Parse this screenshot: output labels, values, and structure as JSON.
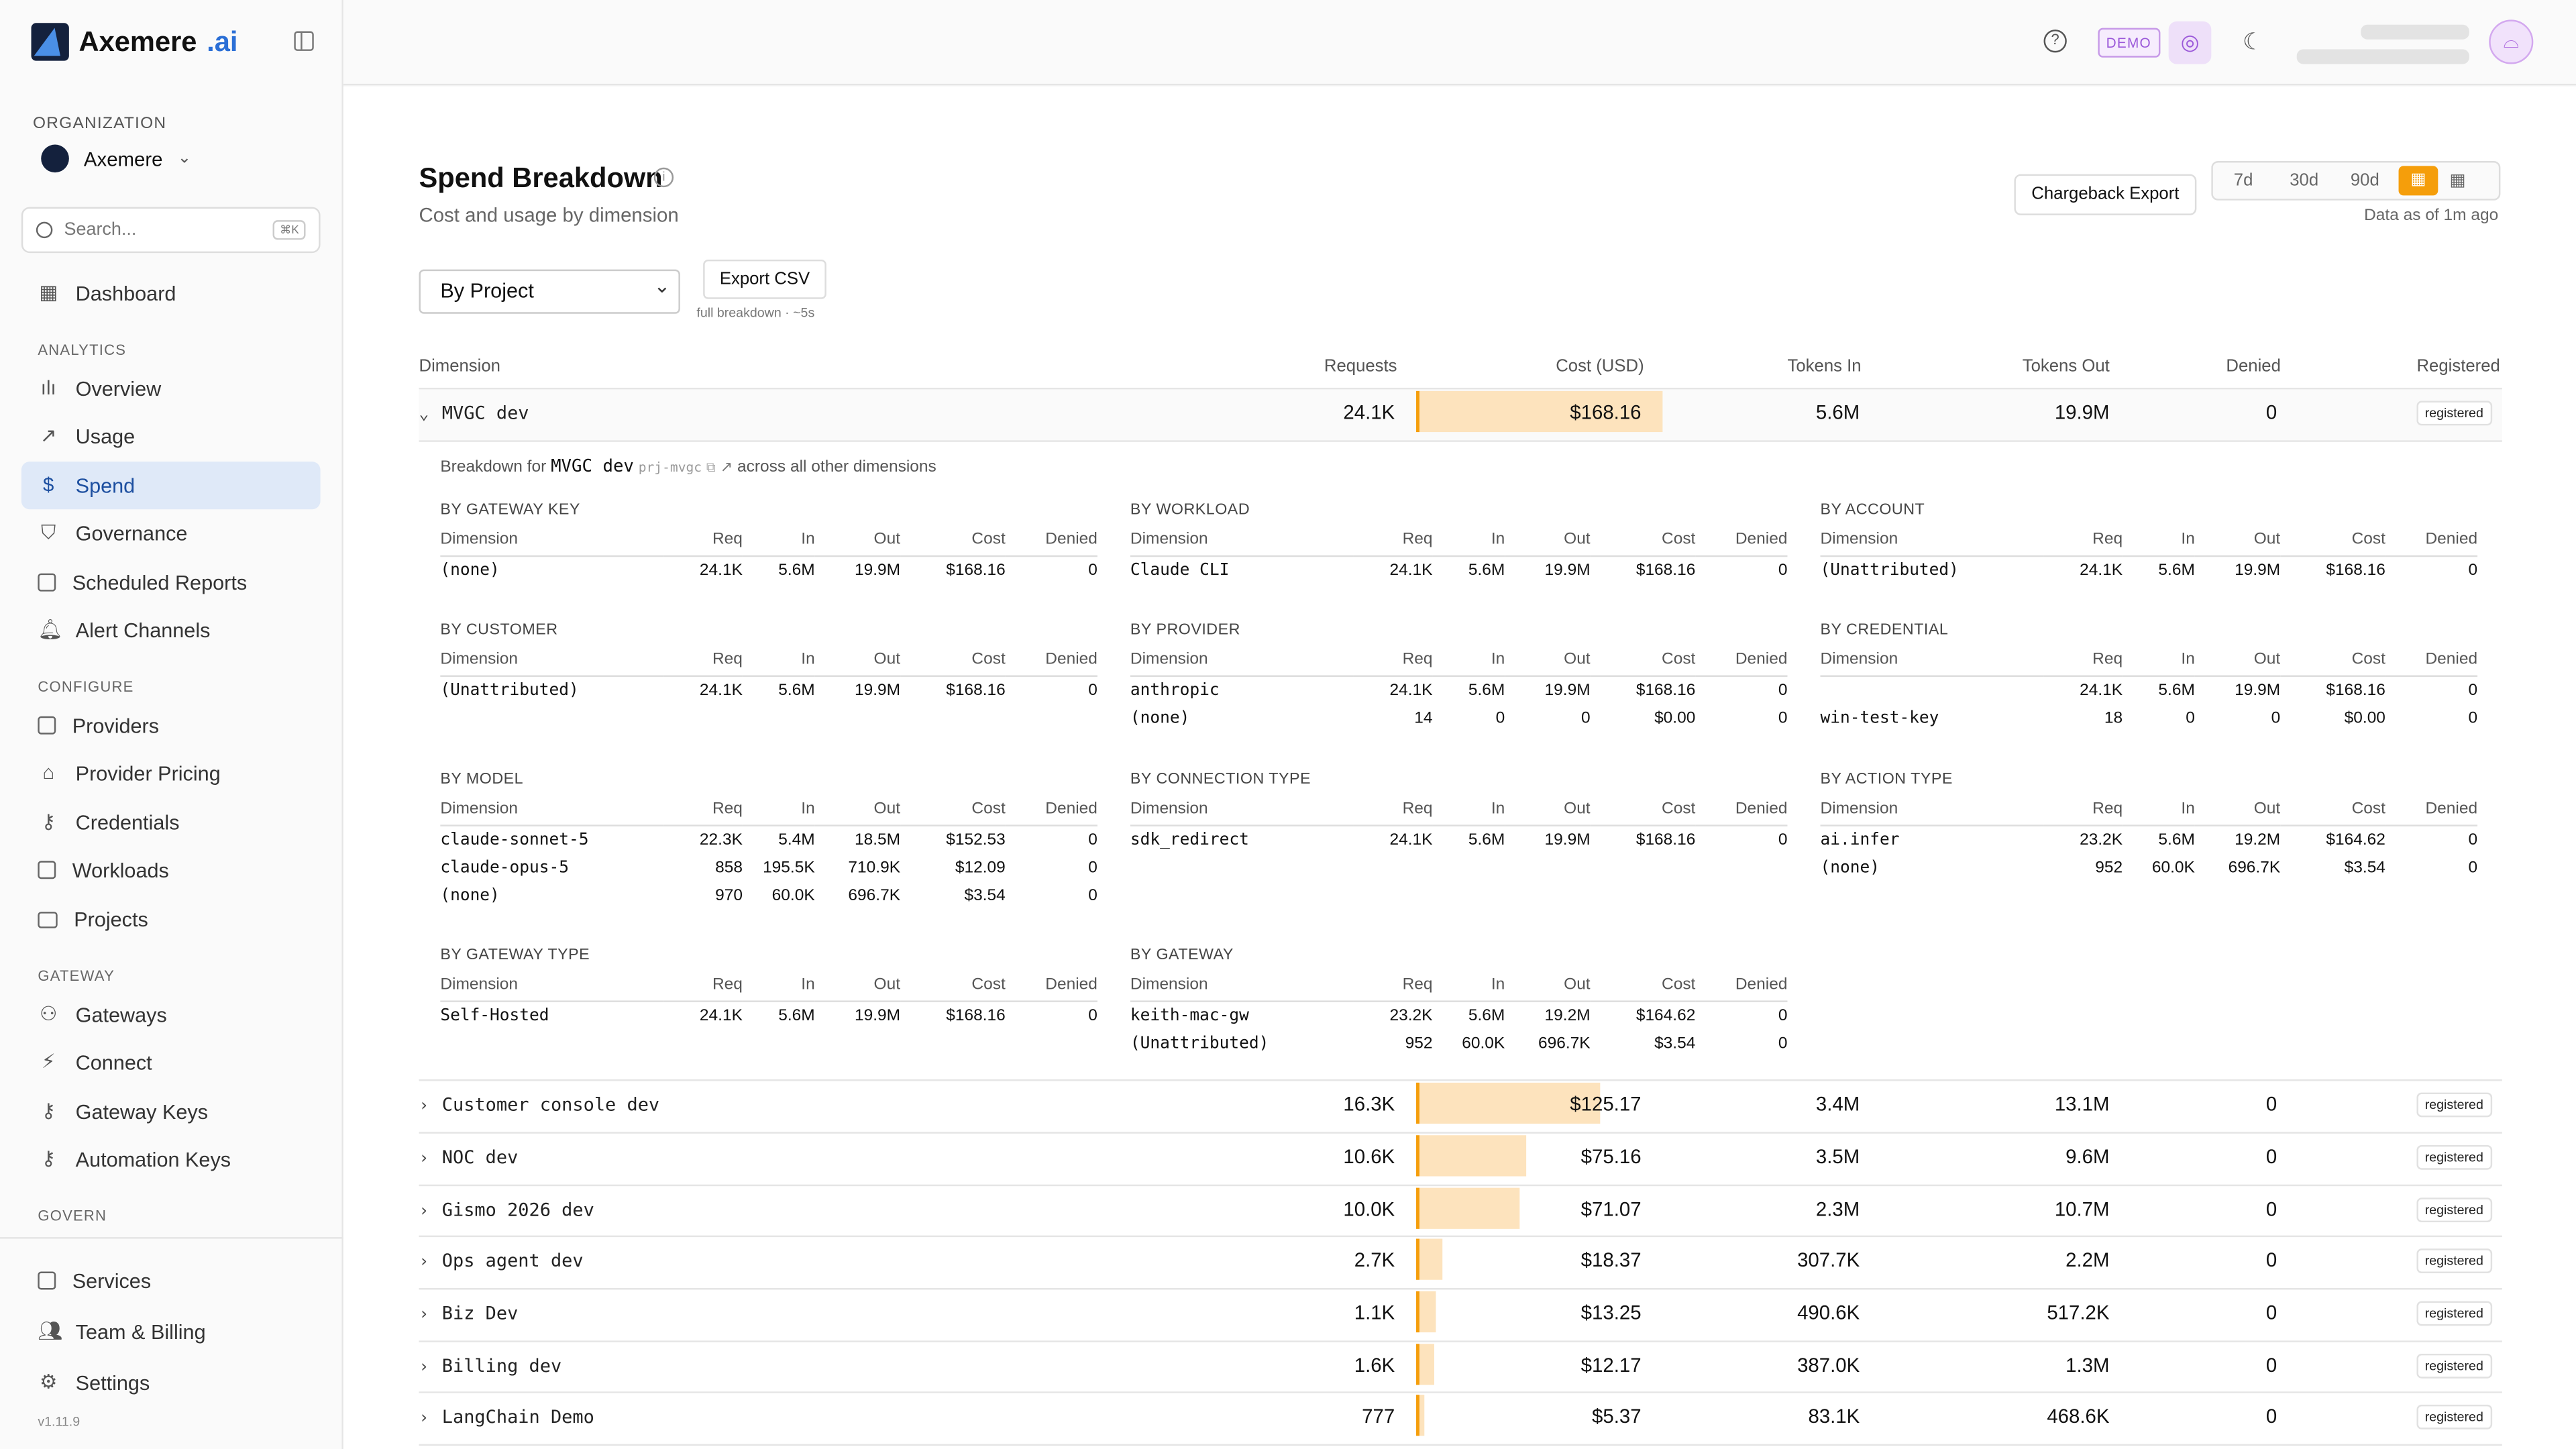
{
  "brand": {
    "name": "Axemere",
    "suffix": ".ai"
  },
  "org": {
    "label": "ORGANIZATION",
    "name": "Axemere"
  },
  "search": {
    "placeholder": "Search...",
    "shortcut": "⌘K"
  },
  "nav": {
    "dashboard": "Dashboard",
    "analytics_label": "ANALYTICS",
    "analytics": [
      "Overview",
      "Usage",
      "Spend",
      "Governance",
      "Scheduled Reports",
      "Alert Channels"
    ],
    "configure_label": "CONFIGURE",
    "configure": [
      "Providers",
      "Provider Pricing",
      "Credentials",
      "Workloads",
      "Projects"
    ],
    "gateway_label": "GATEWAY",
    "gateway": [
      "Gateways",
      "Connect",
      "Gateway Keys",
      "Automation Keys"
    ],
    "govern_label": "GOVERN",
    "bottom": [
      "Services",
      "Team & Billing",
      "Settings"
    ],
    "version": "v1.11.9"
  },
  "topbar": {
    "demo": "DEMO"
  },
  "page": {
    "title": "Spend Breakdown",
    "subtitle": "Cost and usage by dimension",
    "chargeback": "Chargeback Export",
    "ranges": [
      "7d",
      "30d",
      "90d"
    ],
    "as_of": "Data as of 1m ago",
    "group_by": "By Project",
    "export_csv": "Export CSV",
    "export_hint": "full breakdown · ~5s"
  },
  "columns": [
    "Dimension",
    "Requests",
    "Cost (USD)",
    "Tokens In",
    "Tokens Out",
    "Denied",
    "Registered"
  ],
  "rows": [
    {
      "name": "MVGC dev",
      "req": "24.1K",
      "cost": "$168.16",
      "cost_value": 168.16,
      "in": "5.6M",
      "out": "19.9M",
      "denied": "0",
      "status": "registered",
      "expanded": true
    },
    {
      "name": "Customer console dev",
      "req": "16.3K",
      "cost": "$125.17",
      "cost_value": 125.17,
      "in": "3.4M",
      "out": "13.1M",
      "denied": "0",
      "status": "registered"
    },
    {
      "name": "NOC dev",
      "req": "10.6K",
      "cost": "$75.16",
      "cost_value": 75.16,
      "in": "3.5M",
      "out": "9.6M",
      "denied": "0",
      "status": "registered"
    },
    {
      "name": "Gismo 2026 dev",
      "req": "10.0K",
      "cost": "$71.07",
      "cost_value": 71.07,
      "in": "2.3M",
      "out": "10.7M",
      "denied": "0",
      "status": "registered"
    },
    {
      "name": "Ops agent dev",
      "req": "2.7K",
      "cost": "$18.37",
      "cost_value": 18.37,
      "in": "307.7K",
      "out": "2.2M",
      "denied": "0",
      "status": "registered"
    },
    {
      "name": "Biz Dev",
      "req": "1.1K",
      "cost": "$13.25",
      "cost_value": 13.25,
      "in": "490.6K",
      "out": "517.2K",
      "denied": "0",
      "status": "registered"
    },
    {
      "name": "Billing dev",
      "req": "1.6K",
      "cost": "$12.17",
      "cost_value": 12.17,
      "in": "387.0K",
      "out": "1.3M",
      "denied": "0",
      "status": "registered"
    },
    {
      "name": "LangChain Demo",
      "req": "777",
      "cost": "$5.37",
      "cost_value": 5.37,
      "in": "83.1K",
      "out": "468.6K",
      "denied": "0",
      "status": "registered"
    }
  ],
  "breakdown": {
    "prefix": "Breakdown for",
    "project": "MVGC dev",
    "project_id": "prj-mvgc",
    "suffix": "across all other dimensions",
    "headers": [
      "Dimension",
      "Req",
      "In",
      "Out",
      "Cost",
      "Denied"
    ],
    "cards": [
      {
        "title": "BY GATEWAY KEY",
        "rows": [
          [
            "(none)",
            "24.1K",
            "5.6M",
            "19.9M",
            "$168.16",
            "0"
          ]
        ]
      },
      {
        "title": "BY WORKLOAD",
        "rows": [
          [
            "Claude CLI",
            "24.1K",
            "5.6M",
            "19.9M",
            "$168.16",
            "0"
          ]
        ]
      },
      {
        "title": "BY ACCOUNT",
        "rows": [
          [
            "(Unattributed)",
            "24.1K",
            "5.6M",
            "19.9M",
            "$168.16",
            "0"
          ]
        ]
      },
      {
        "title": "BY CUSTOMER",
        "rows": [
          [
            "(Unattributed)",
            "24.1K",
            "5.6M",
            "19.9M",
            "$168.16",
            "0"
          ]
        ]
      },
      {
        "title": "BY PROVIDER",
        "rows": [
          [
            "anthropic",
            "24.1K",
            "5.6M",
            "19.9M",
            "$168.16",
            "0"
          ],
          [
            "(none)",
            "14",
            "0",
            "0",
            "$0.00",
            "0"
          ]
        ]
      },
      {
        "title": "BY CREDENTIAL",
        "rows": [
          [
            "",
            "24.1K",
            "5.6M",
            "19.9M",
            "$168.16",
            "0"
          ],
          [
            "win-test-key",
            "18",
            "0",
            "0",
            "$0.00",
            "0"
          ]
        ]
      },
      {
        "title": "BY MODEL",
        "rows": [
          [
            "claude-sonnet-5",
            "22.3K",
            "5.4M",
            "18.5M",
            "$152.53",
            "0"
          ],
          [
            "claude-opus-5",
            "858",
            "195.5K",
            "710.9K",
            "$12.09",
            "0"
          ],
          [
            "(none)",
            "970",
            "60.0K",
            "696.7K",
            "$3.54",
            "0"
          ]
        ]
      },
      {
        "title": "BY CONNECTION TYPE",
        "rows": [
          [
            "sdk_redirect",
            "24.1K",
            "5.6M",
            "19.9M",
            "$168.16",
            "0"
          ]
        ]
      },
      {
        "title": "BY ACTION TYPE",
        "rows": [
          [
            "ai.infer",
            "23.2K",
            "5.6M",
            "19.2M",
            "$164.62",
            "0"
          ],
          [
            "(none)",
            "952",
            "60.0K",
            "696.7K",
            "$3.54",
            "0"
          ]
        ]
      },
      {
        "title": "BY GATEWAY TYPE",
        "rows": [
          [
            "Self-Hosted",
            "24.1K",
            "5.6M",
            "19.9M",
            "$168.16",
            "0"
          ]
        ]
      },
      {
        "title": "BY GATEWAY",
        "rows": [
          [
            "keith-mac-gw",
            "23.2K",
            "5.6M",
            "19.2M",
            "$164.62",
            "0"
          ],
          [
            "(Unattributed)",
            "952",
            "60.0K",
            "696.7K",
            "$3.54",
            "0"
          ]
        ]
      }
    ]
  }
}
